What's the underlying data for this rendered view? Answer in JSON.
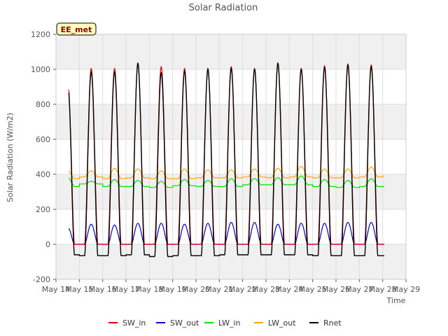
{
  "chart_data": {
    "type": "line",
    "title": "Solar Radiation",
    "xlabel": "Time",
    "ylabel": "Solar Radiation (W/m2)",
    "station_label": "EE_met",
    "xlim": [
      14,
      29
    ],
    "ylim": [
      -200,
      1200
    ],
    "x_ticks": [
      {
        "value": 14,
        "label": "May 14"
      },
      {
        "value": 15,
        "label": "May 15"
      },
      {
        "value": 16,
        "label": "May 16"
      },
      {
        "value": 17,
        "label": "May 17"
      },
      {
        "value": 18,
        "label": "May 18"
      },
      {
        "value": 19,
        "label": "May 19"
      },
      {
        "value": 20,
        "label": "May 20"
      },
      {
        "value": 21,
        "label": "May 21"
      },
      {
        "value": 22,
        "label": "May 22"
      },
      {
        "value": 23,
        "label": "May 23"
      },
      {
        "value": 24,
        "label": "May 24"
      },
      {
        "value": 25,
        "label": "May 25"
      },
      {
        "value": 26,
        "label": "May 26"
      },
      {
        "value": 27,
        "label": "May 27"
      },
      {
        "value": 28,
        "label": "May 28"
      },
      {
        "value": 29,
        "label": "May 29"
      }
    ],
    "y_ticks": [
      {
        "value": -200,
        "label": "-200"
      },
      {
        "value": 0,
        "label": "0"
      },
      {
        "value": 200,
        "label": "200"
      },
      {
        "value": 400,
        "label": "400"
      },
      {
        "value": 600,
        "label": "600"
      },
      {
        "value": 800,
        "label": "800"
      },
      {
        "value": 1000,
        "label": "1000"
      },
      {
        "value": 1200,
        "label": "1200"
      }
    ],
    "shaded_bands": [
      [
        -200,
        0
      ],
      [
        200,
        400
      ],
      [
        600,
        800
      ],
      [
        1000,
        1200
      ]
    ],
    "grid": true,
    "legend_position": "bottom",
    "series": [
      {
        "name": "SW_in",
        "color": "#dd0000",
        "daily_peaks": [
          920,
          1005,
          1005,
          1030,
          1015,
          1005,
          1005,
          1015,
          1005,
          1035,
          1005,
          1020,
          1030,
          1025
        ]
      },
      {
        "name": "SW_out",
        "color": "#0000cc",
        "daily_peaks": [
          95,
          115,
          110,
          120,
          120,
          115,
          120,
          125,
          125,
          115,
          120,
          120,
          125,
          125
        ]
      },
      {
        "name": "LW_in",
        "color": "#00dd00",
        "night_values": [
          330,
          345,
          330,
          330,
          325,
          335,
          330,
          330,
          340,
          340,
          340,
          330,
          325,
          330,
          330
        ],
        "daily_peaks": [
          380,
          360,
          370,
          365,
          360,
          370,
          365,
          375,
          375,
          380,
          390,
          370,
          365,
          375
        ]
      },
      {
        "name": "LW_out",
        "color": "#ffa500",
        "night_values": [
          375,
          385,
          375,
          380,
          375,
          375,
          380,
          380,
          385,
          380,
          385,
          380,
          380,
          385,
          390
        ],
        "daily_peaks": [
          420,
          420,
          435,
          430,
          420,
          430,
          425,
          425,
          430,
          435,
          445,
          430,
          430,
          440
        ]
      },
      {
        "name": "Rnet",
        "color": "#000000",
        "night_values": [
          -60,
          -65,
          -65,
          -60,
          -70,
          -65,
          -65,
          -60,
          -60,
          -60,
          -60,
          -65,
          -65,
          -65,
          -65
        ],
        "daily_peaks": [
          905,
          985,
          985,
          1035,
          980,
          990,
          1000,
          1005,
          1000,
          1035,
          1000,
          1010,
          1025,
          1015
        ]
      }
    ]
  }
}
